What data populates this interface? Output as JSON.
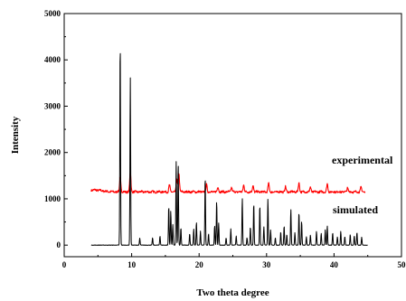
{
  "chart_data": {
    "type": "line",
    "xlabel": "Two theta degree",
    "ylabel": "Intensity",
    "xlim": [
      0,
      50
    ],
    "ylim": [
      -250,
      5000
    ],
    "xticks": [
      0,
      10,
      20,
      30,
      40,
      50
    ],
    "xtick_labels": [
      "0",
      "10",
      "20",
      "30",
      "40",
      "50"
    ],
    "yticks": [
      0,
      1000,
      2000,
      3000,
      4000,
      5000
    ],
    "ytick_labels": [
      "0",
      "1000",
      "2000",
      "3000",
      "4000",
      "5000"
    ],
    "grid": false,
    "series": [
      {
        "name": "experimental",
        "color": "#ff0000",
        "baseline": 1150,
        "x_range": [
          4,
          44.6
        ],
        "peaks": [
          [
            8.3,
            1460
          ],
          [
            9.8,
            1580
          ],
          [
            15.6,
            1300
          ],
          [
            16.7,
            1420
          ],
          [
            17.0,
            1560
          ],
          [
            21.1,
            1310
          ],
          [
            22.8,
            1260
          ],
          [
            24.8,
            1250
          ],
          [
            26.6,
            1300
          ],
          [
            28.0,
            1280
          ],
          [
            30.3,
            1330
          ],
          [
            32.8,
            1260
          ],
          [
            34.8,
            1340
          ],
          [
            36.5,
            1250
          ],
          [
            39.0,
            1320
          ],
          [
            42.0,
            1240
          ],
          [
            44.0,
            1250
          ]
        ]
      },
      {
        "name": "simulated",
        "color": "#000000",
        "baseline": 0,
        "x_range": [
          4,
          45
        ],
        "peaks": [
          [
            8.3,
            4480
          ],
          [
            9.8,
            3630
          ],
          [
            11.2,
            150
          ],
          [
            13.1,
            160
          ],
          [
            14.2,
            200
          ],
          [
            15.5,
            860
          ],
          [
            15.8,
            750
          ],
          [
            16.1,
            450
          ],
          [
            16.6,
            1800
          ],
          [
            16.9,
            1780
          ],
          [
            17.3,
            380
          ],
          [
            18.6,
            250
          ],
          [
            19.2,
            350
          ],
          [
            19.6,
            500
          ],
          [
            20.2,
            300
          ],
          [
            20.9,
            1500
          ],
          [
            21.4,
            250
          ],
          [
            22.3,
            420
          ],
          [
            22.6,
            960
          ],
          [
            22.9,
            480
          ],
          [
            24.0,
            160
          ],
          [
            24.7,
            350
          ],
          [
            25.5,
            200
          ],
          [
            26.4,
            1020
          ],
          [
            27.1,
            160
          ],
          [
            27.6,
            400
          ],
          [
            28.1,
            920
          ],
          [
            29.0,
            870
          ],
          [
            29.6,
            400
          ],
          [
            30.2,
            1010
          ],
          [
            30.6,
            330
          ],
          [
            31.3,
            160
          ],
          [
            32.1,
            290
          ],
          [
            32.6,
            420
          ],
          [
            33.0,
            230
          ],
          [
            33.6,
            780
          ],
          [
            34.2,
            270
          ],
          [
            34.8,
            720
          ],
          [
            35.2,
            520
          ],
          [
            35.9,
            180
          ],
          [
            36.5,
            220
          ],
          [
            37.4,
            300
          ],
          [
            38.1,
            260
          ],
          [
            38.7,
            330
          ],
          [
            39.0,
            420
          ],
          [
            39.8,
            270
          ],
          [
            40.5,
            180
          ],
          [
            41.0,
            300
          ],
          [
            41.6,
            190
          ],
          [
            42.4,
            230
          ],
          [
            43.0,
            200
          ],
          [
            43.4,
            280
          ],
          [
            44.1,
            170
          ]
        ]
      }
    ]
  }
}
